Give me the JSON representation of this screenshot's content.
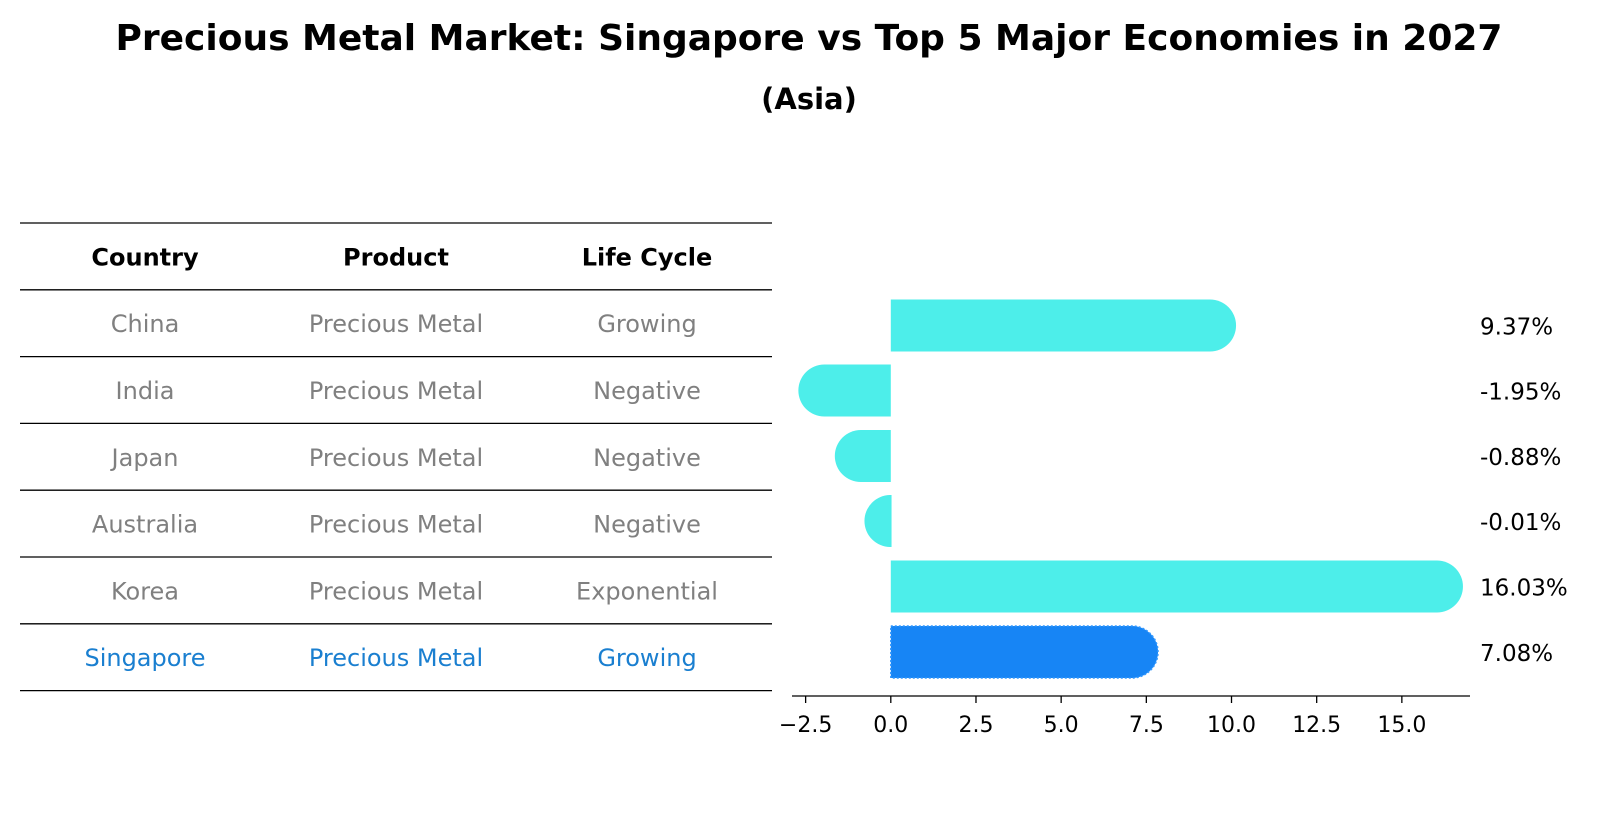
{
  "chart_data": {
    "type": "bar",
    "orientation": "horizontal",
    "title": "Precious Metal Market: Singapore vs Top 5 Major Economies in 2027",
    "subtitle": "(Asia)",
    "table": {
      "headers": [
        "Country",
        "Product",
        "Life Cycle"
      ],
      "rows": [
        {
          "country": "China",
          "product": "Precious Metal",
          "life_cycle": "Growing",
          "highlight": false
        },
        {
          "country": "India",
          "product": "Precious Metal",
          "life_cycle": "Negative",
          "highlight": false
        },
        {
          "country": "Japan",
          "product": "Precious Metal",
          "life_cycle": "Negative",
          "highlight": false
        },
        {
          "country": "Australia",
          "product": "Precious Metal",
          "life_cycle": "Negative",
          "highlight": false
        },
        {
          "country": "Korea",
          "product": "Precious Metal",
          "life_cycle": "Exponential",
          "highlight": false
        },
        {
          "country": "Singapore",
          "product": "Precious Metal",
          "life_cycle": "Growing",
          "highlight": true
        }
      ]
    },
    "categories": [
      "China",
      "India",
      "Japan",
      "Australia",
      "Korea",
      "Singapore"
    ],
    "values": [
      9.37,
      -1.95,
      -0.88,
      -0.01,
      16.03,
      7.08
    ],
    "value_labels": [
      "9.37%",
      "-1.95%",
      "-0.88%",
      "-0.01%",
      "16.03%",
      "7.08%"
    ],
    "xlim": [
      -2.9,
      17.0
    ],
    "xticks": [
      -2.5,
      0.0,
      2.5,
      5.0,
      7.5,
      10.0,
      12.5,
      15.0
    ],
    "xtick_labels": [
      "−2.5",
      "0.0",
      "2.5",
      "5.0",
      "7.5",
      "10.0",
      "12.5",
      "15.0"
    ],
    "grid": false,
    "colors": {
      "default_bar": "#4DEEEA",
      "highlight_bar": "#1785F5",
      "highlight_text": "#1A7FD0",
      "muted_text": "#808080",
      "rule": "#000000"
    }
  }
}
